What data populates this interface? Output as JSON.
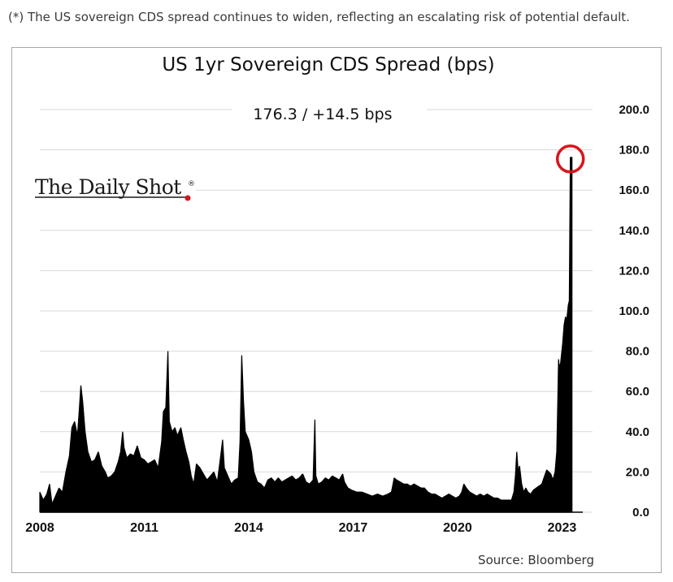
{
  "caption": "(*) The US sovereign CDS spread continues to widen, reflecting an escalating risk of potential default.",
  "brand": {
    "text": "The Daily Shot",
    "mark": "®",
    "accent": "#d9141c"
  },
  "source": "Source: Bloomberg",
  "colors": {
    "series": "#000000",
    "grid": "#d9d9d9",
    "highlight": "#d9141c"
  },
  "chart_data": {
    "type": "area",
    "title": "US 1yr Sovereign CDS Spread (bps)",
    "subtitle": "176.3  /  +14.5 bps",
    "xlabel": "",
    "ylabel": "",
    "ylim": [
      0,
      200
    ],
    "xlim": [
      2008.0,
      2023.55
    ],
    "yticks": [
      "0.0",
      "20.0",
      "40.0",
      "60.0",
      "80.0",
      "100.0",
      "120.0",
      "140.0",
      "160.0",
      "180.0",
      "200.0"
    ],
    "xticks": [
      "2008",
      "2011",
      "2014",
      "2017",
      "2020",
      "2023"
    ],
    "grid": "horizontal",
    "highlight": "last value circled",
    "series": [
      {
        "points": [
          [
            2008.0,
            10
          ],
          [
            2008.1,
            6
          ],
          [
            2008.2,
            9
          ],
          [
            2008.28,
            14
          ],
          [
            2008.35,
            4
          ],
          [
            2008.45,
            8
          ],
          [
            2008.55,
            12
          ],
          [
            2008.65,
            10
          ],
          [
            2008.75,
            20
          ],
          [
            2008.85,
            28
          ],
          [
            2008.92,
            42
          ],
          [
            2009.0,
            45
          ],
          [
            2009.08,
            38
          ],
          [
            2009.13,
            50
          ],
          [
            2009.18,
            63
          ],
          [
            2009.23,
            55
          ],
          [
            2009.3,
            40
          ],
          [
            2009.38,
            30
          ],
          [
            2009.48,
            25
          ],
          [
            2009.58,
            26
          ],
          [
            2009.68,
            30
          ],
          [
            2009.78,
            23
          ],
          [
            2009.88,
            20
          ],
          [
            2009.95,
            17
          ],
          [
            2010.05,
            18
          ],
          [
            2010.15,
            20
          ],
          [
            2010.25,
            25
          ],
          [
            2010.32,
            30
          ],
          [
            2010.38,
            40
          ],
          [
            2010.42,
            32
          ],
          [
            2010.5,
            27
          ],
          [
            2010.6,
            29
          ],
          [
            2010.7,
            28
          ],
          [
            2010.8,
            33
          ],
          [
            2010.9,
            27
          ],
          [
            2011.0,
            26
          ],
          [
            2011.1,
            24
          ],
          [
            2011.2,
            25
          ],
          [
            2011.3,
            26
          ],
          [
            2011.4,
            22
          ],
          [
            2011.5,
            35
          ],
          [
            2011.55,
            50
          ],
          [
            2011.62,
            52
          ],
          [
            2011.68,
            80
          ],
          [
            2011.72,
            45
          ],
          [
            2011.8,
            40
          ],
          [
            2011.88,
            42
          ],
          [
            2011.95,
            38
          ],
          [
            2012.05,
            42
          ],
          [
            2012.12,
            36
          ],
          [
            2012.2,
            30
          ],
          [
            2012.28,
            25
          ],
          [
            2012.35,
            18
          ],
          [
            2012.42,
            14
          ],
          [
            2012.5,
            24
          ],
          [
            2012.6,
            22
          ],
          [
            2012.7,
            19
          ],
          [
            2012.8,
            16
          ],
          [
            2012.9,
            18
          ],
          [
            2013.0,
            20
          ],
          [
            2013.1,
            15
          ],
          [
            2013.18,
            26
          ],
          [
            2013.25,
            36
          ],
          [
            2013.3,
            22
          ],
          [
            2013.4,
            18
          ],
          [
            2013.5,
            14
          ],
          [
            2013.6,
            16
          ],
          [
            2013.7,
            17
          ],
          [
            2013.75,
            35
          ],
          [
            2013.8,
            78
          ],
          [
            2013.85,
            55
          ],
          [
            2013.9,
            40
          ],
          [
            2014.0,
            36
          ],
          [
            2014.08,
            30
          ],
          [
            2014.15,
            20
          ],
          [
            2014.25,
            15
          ],
          [
            2014.35,
            14
          ],
          [
            2014.45,
            12
          ],
          [
            2014.55,
            16
          ],
          [
            2014.65,
            17
          ],
          [
            2014.75,
            15
          ],
          [
            2014.85,
            17
          ],
          [
            2014.95,
            15
          ],
          [
            2015.05,
            16
          ],
          [
            2015.15,
            17
          ],
          [
            2015.25,
            18
          ],
          [
            2015.35,
            16
          ],
          [
            2015.45,
            17
          ],
          [
            2015.55,
            19
          ],
          [
            2015.65,
            15
          ],
          [
            2015.75,
            14
          ],
          [
            2015.85,
            16
          ],
          [
            2015.9,
            46
          ],
          [
            2015.93,
            18
          ],
          [
            2016.0,
            14
          ],
          [
            2016.1,
            15
          ],
          [
            2016.2,
            17
          ],
          [
            2016.3,
            16
          ],
          [
            2016.4,
            18
          ],
          [
            2016.5,
            17
          ],
          [
            2016.6,
            16
          ],
          [
            2016.7,
            19
          ],
          [
            2016.75,
            15
          ],
          [
            2016.85,
            12
          ],
          [
            2016.95,
            11
          ],
          [
            2017.1,
            10
          ],
          [
            2017.25,
            10
          ],
          [
            2017.4,
            9
          ],
          [
            2017.55,
            8
          ],
          [
            2017.7,
            9
          ],
          [
            2017.85,
            8
          ],
          [
            2018.0,
            9
          ],
          [
            2018.1,
            10
          ],
          [
            2018.18,
            17
          ],
          [
            2018.25,
            16
          ],
          [
            2018.35,
            15
          ],
          [
            2018.45,
            14
          ],
          [
            2018.55,
            14
          ],
          [
            2018.65,
            13
          ],
          [
            2018.75,
            14
          ],
          [
            2018.85,
            13
          ],
          [
            2018.95,
            12
          ],
          [
            2019.05,
            12
          ],
          [
            2019.15,
            10
          ],
          [
            2019.25,
            9
          ],
          [
            2019.35,
            9
          ],
          [
            2019.45,
            8
          ],
          [
            2019.55,
            7
          ],
          [
            2019.65,
            8
          ],
          [
            2019.75,
            9
          ],
          [
            2019.85,
            8
          ],
          [
            2019.95,
            7
          ],
          [
            2020.05,
            8
          ],
          [
            2020.12,
            10
          ],
          [
            2020.18,
            14
          ],
          [
            2020.25,
            12
          ],
          [
            2020.35,
            10
          ],
          [
            2020.45,
            9
          ],
          [
            2020.55,
            8
          ],
          [
            2020.65,
            9
          ],
          [
            2020.75,
            8
          ],
          [
            2020.85,
            9
          ],
          [
            2020.95,
            8
          ],
          [
            2021.05,
            7
          ],
          [
            2021.15,
            7
          ],
          [
            2021.25,
            6
          ],
          [
            2021.35,
            6
          ],
          [
            2021.45,
            6
          ],
          [
            2021.55,
            6
          ],
          [
            2021.62,
            10
          ],
          [
            2021.66,
            18
          ],
          [
            2021.7,
            30
          ],
          [
            2021.74,
            20
          ],
          [
            2021.78,
            23
          ],
          [
            2021.84,
            14
          ],
          [
            2021.9,
            10
          ],
          [
            2021.96,
            12
          ],
          [
            2022.02,
            10
          ],
          [
            2022.1,
            9
          ],
          [
            2022.18,
            11
          ],
          [
            2022.26,
            12
          ],
          [
            2022.34,
            13
          ],
          [
            2022.42,
            14
          ],
          [
            2022.5,
            18
          ],
          [
            2022.56,
            21
          ],
          [
            2022.62,
            20
          ],
          [
            2022.68,
            19
          ],
          [
            2022.74,
            16
          ],
          [
            2022.8,
            20
          ],
          [
            2022.85,
            30
          ],
          [
            2022.88,
            56
          ],
          [
            2022.9,
            76
          ],
          [
            2022.92,
            72
          ],
          [
            2022.96,
            74
          ],
          [
            2023.02,
            84
          ],
          [
            2023.06,
            93
          ],
          [
            2023.1,
            97
          ],
          [
            2023.14,
            96
          ],
          [
            2023.18,
            103
          ],
          [
            2023.21,
            105
          ],
          [
            2023.24,
            176.3
          ]
        ]
      }
    ]
  }
}
